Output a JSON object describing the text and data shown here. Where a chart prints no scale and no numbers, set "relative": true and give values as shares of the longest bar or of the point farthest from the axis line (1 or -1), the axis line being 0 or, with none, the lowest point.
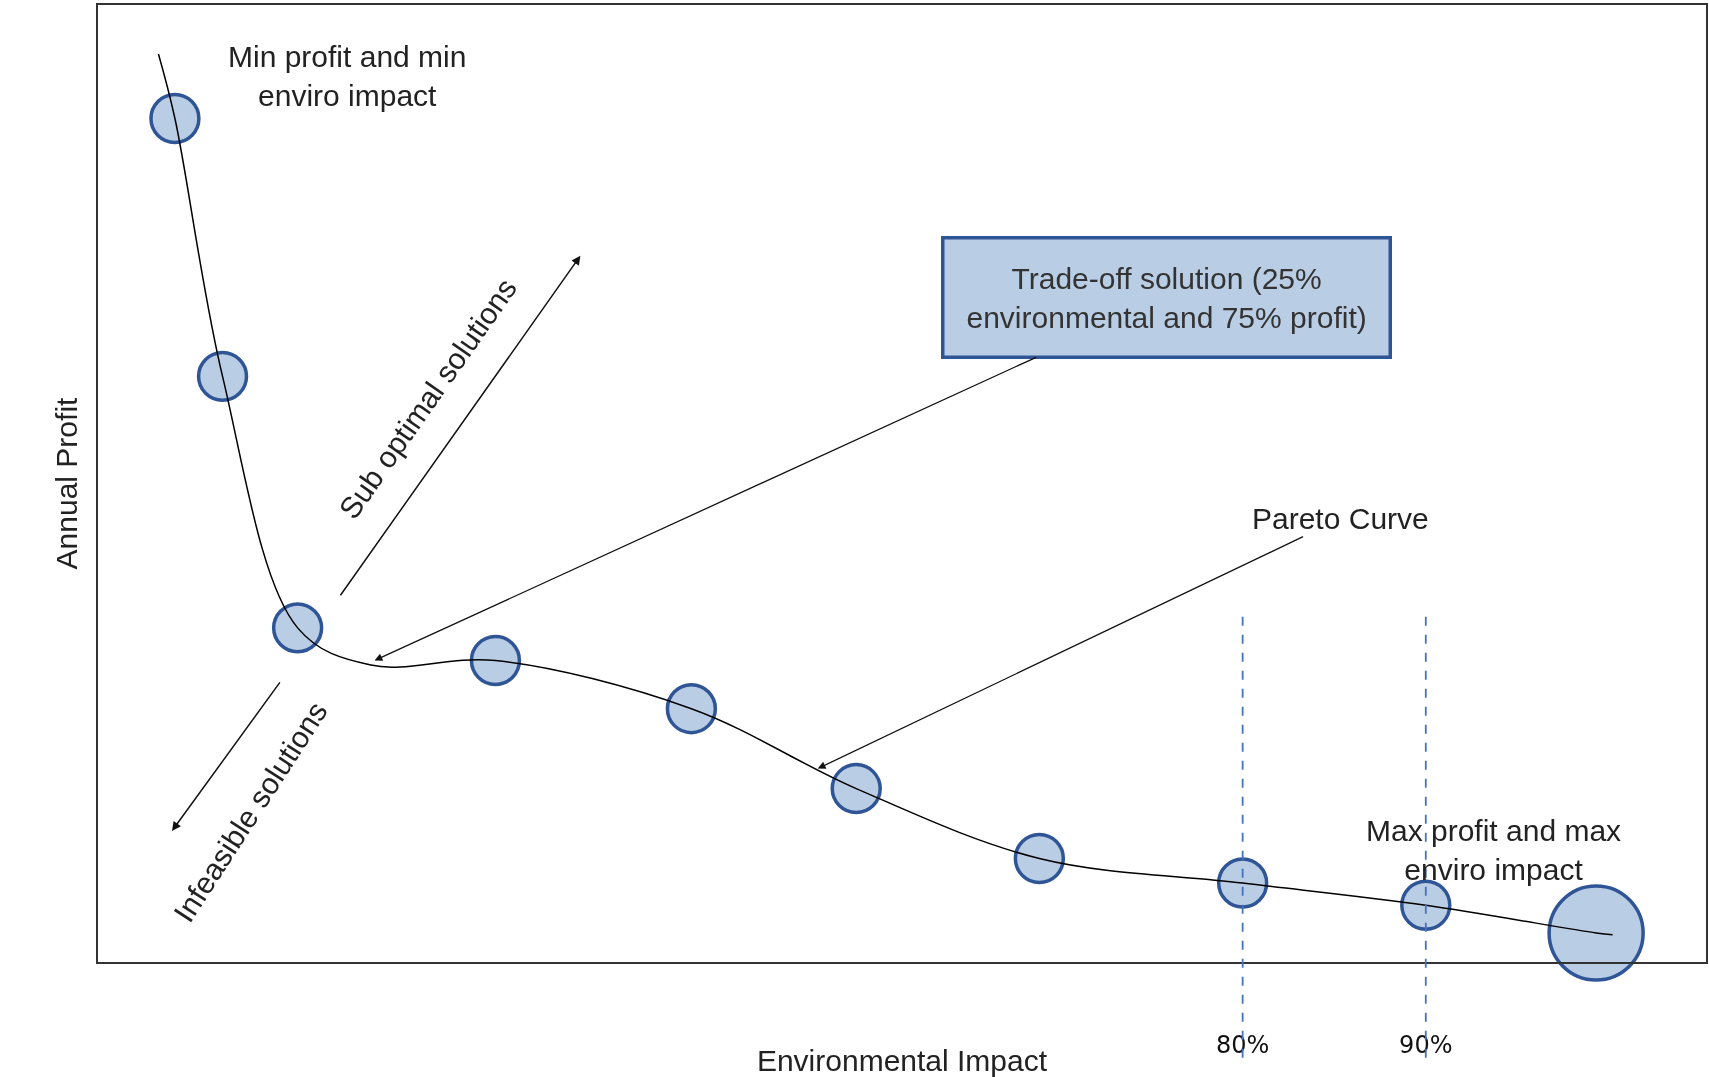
{
  "chart_data": {
    "type": "line",
    "relative": true,
    "xlabel": "Environmental Impact",
    "ylabel": "Annual Profit",
    "xlim": [
      17.5,
      105.3
    ],
    "xticks": [
      {
        "value": 80,
        "label": "80%"
      },
      {
        "value": 90,
        "label": "90%"
      }
    ],
    "series": [
      {
        "type": "line",
        "color": "#000000",
        "x": [
          20.8,
          21.7,
          24.3,
          28.4,
          32.4,
          39.2,
          49.9,
          58.9,
          68.9,
          80,
          90,
          99.3,
          100.2
        ],
        "values": [
          1.0,
          0.929,
          0.645,
          0.368,
          0.327,
          0.332,
          0.279,
          0.191,
          0.114,
          0.087,
          0.0625,
          0.032,
          0.03
        ]
      },
      {
        "type": "bubble",
        "color": "#b9cde5",
        "x": [
          21.7,
          24.3,
          28.4,
          39.2,
          49.9,
          58.9,
          68.9,
          80,
          90,
          99.3
        ],
        "values": [
          0.929,
          0.645,
          0.368,
          0.332,
          0.279,
          0.191,
          0.114,
          0.087,
          0.0625,
          0.032
        ],
        "sizes": [
          0.26,
          0.26,
          0.26,
          0.26,
          0.26,
          0.26,
          0.26,
          0.26,
          0.26,
          1
        ]
      }
    ],
    "ref_lines": [
      {
        "axis": "x",
        "value": 80,
        "color": "#4472c4",
        "line_style": "dashed"
      },
      {
        "axis": "x",
        "value": 90,
        "color": "#4472c4",
        "line_style": "dashed"
      }
    ],
    "annotations": [
      "Min profit and min\nenviro impact",
      {
        "text": "Trade-off solution (25%\nenvironmental and 75% profit)",
        "x": 32.6,
        "y": 0.332
      },
      "Sub optimal solutions",
      "Infeasible solutions",
      {
        "text": "Pareto Curve",
        "x": 56.8,
        "y": 0.213
      },
      "Max profit and max\nenviro impact"
    ],
    "grid": false
  }
}
